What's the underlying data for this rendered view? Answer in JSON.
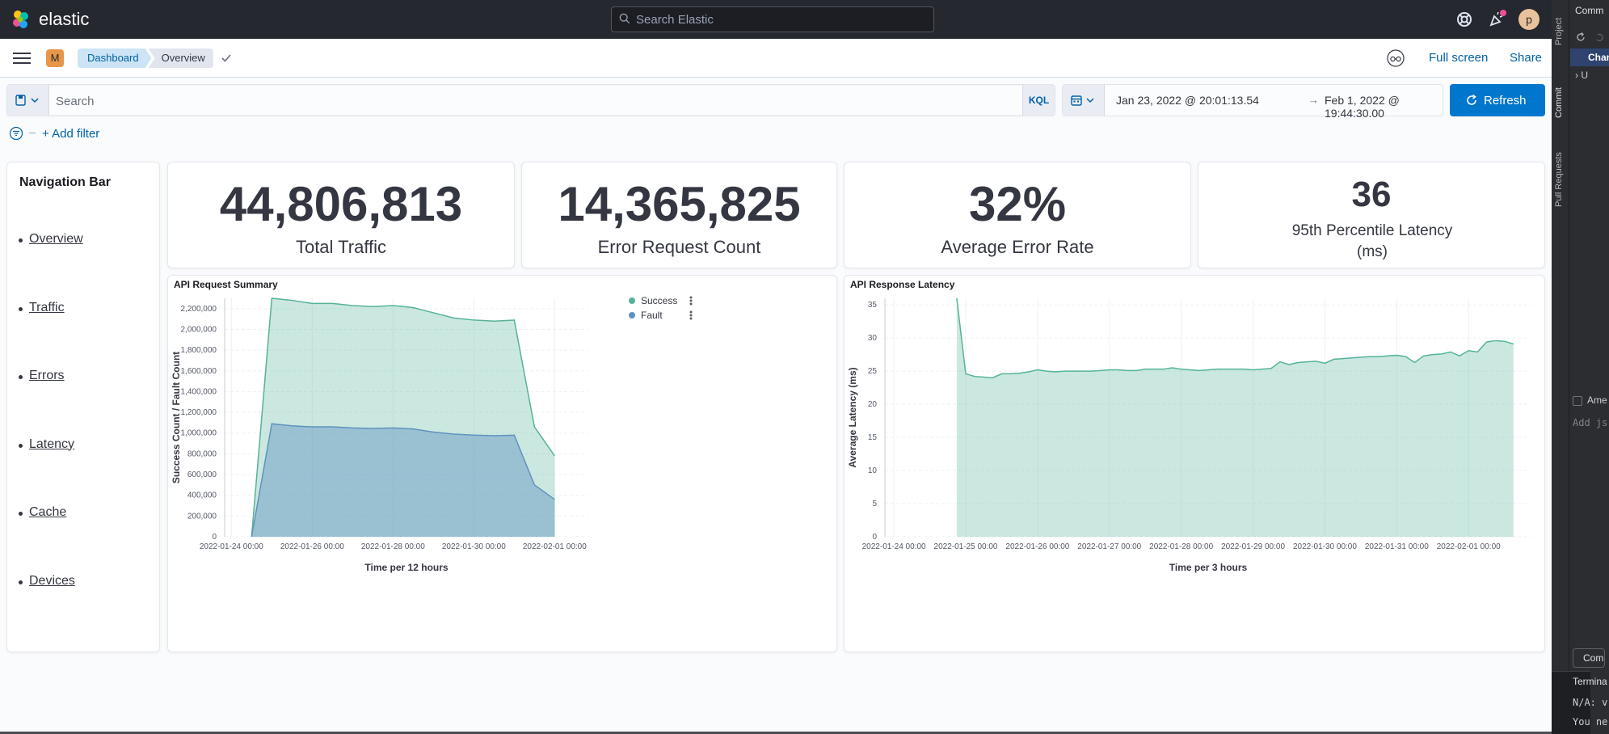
{
  "header": {
    "brand": "elastic",
    "search_placeholder": "Search Elastic",
    "user_initial": "p"
  },
  "breadcrumb_bar": {
    "space_initial": "M",
    "crumbs": [
      "Dashboard",
      "Overview"
    ],
    "fullscreen_label": "Full screen",
    "share_label": "Share"
  },
  "query_bar": {
    "placeholder": "Search",
    "language": "KQL"
  },
  "time_picker": {
    "start": "Jan 23, 2022 @ 20:01:13.54",
    "arrow": "→",
    "end": "Feb 1, 2022 @ 19:44:30.00",
    "refresh_label": "Refresh"
  },
  "filter_bar": {
    "add_filter_label": "+ Add filter"
  },
  "nav_panel": {
    "title": "Navigation Bar",
    "items": [
      "Overview",
      "Traffic",
      "Errors",
      "Latency",
      "Cache",
      "Devices"
    ]
  },
  "metrics": [
    {
      "value": "44,806,813",
      "label": "Total Traffic"
    },
    {
      "value": "14,365,825",
      "label": "Error Request Count"
    },
    {
      "value": "32%",
      "label": "Average Error Rate"
    },
    {
      "value": "36",
      "label": "95th Percentile Latency (ms)"
    }
  ],
  "colors": {
    "success": "#54b399",
    "fault": "#6092c0",
    "link": "#0061a6",
    "primary_button": "#0077cc",
    "header_bg": "#25282f"
  },
  "icons": [
    "elastic-logo-icon",
    "search-icon",
    "help-icon",
    "newsfeed-icon",
    "menu-icon",
    "check-icon",
    "glasses-icon",
    "saved-query-icon",
    "calendar-icon",
    "chevron-down-icon",
    "refresh-icon",
    "filter-icon",
    "legend-menu-icon"
  ],
  "chart_data": [
    {
      "type": "area",
      "title": "API Request Summary",
      "xlabel": "Time per 12 hours",
      "ylabel": "Success Count / Fault Count",
      "x_ticks": [
        "2022-01-24 00:00",
        "2022-01-26 00:00",
        "2022-01-28 00:00",
        "2022-01-30 00:00",
        "2022-02-01 00:00"
      ],
      "y_ticks": [
        "0",
        "200,000",
        "400,000",
        "600,000",
        "800,000",
        "1,000,000",
        "1,200,000",
        "1,400,000",
        "1,600,000",
        "1,800,000",
        "2,000,000",
        "2,200,000"
      ],
      "ylim": [
        0,
        2300000
      ],
      "xlim": [
        "2022-01-23 20:00",
        "2022-02-01 20:00"
      ],
      "x": [
        "2022-01-24 12:00",
        "2022-01-25 00:00",
        "2022-01-25 12:00",
        "2022-01-26 00:00",
        "2022-01-26 12:00",
        "2022-01-27 00:00",
        "2022-01-27 12:00",
        "2022-01-28 00:00",
        "2022-01-28 12:00",
        "2022-01-29 00:00",
        "2022-01-29 12:00",
        "2022-01-30 00:00",
        "2022-01-30 12:00",
        "2022-01-31 00:00",
        "2022-01-31 12:00",
        "2022-02-01 00:00"
      ],
      "series": [
        {
          "name": "Success",
          "values": [
            0,
            2300000,
            2280000,
            2250000,
            2250000,
            2230000,
            2220000,
            2230000,
            2210000,
            2160000,
            2110000,
            2090000,
            2080000,
            2090000,
            1060000,
            780000
          ]
        },
        {
          "name": "Fault",
          "values": [
            0,
            1090000,
            1070000,
            1060000,
            1060000,
            1050000,
            1045000,
            1050000,
            1040000,
            1010000,
            990000,
            980000,
            975000,
            980000,
            500000,
            360000
          ]
        }
      ],
      "legend_position": "top-right",
      "grid": true
    },
    {
      "type": "area",
      "title": "API Response Latency",
      "xlabel": "Time per 3 hours",
      "ylabel": "Average Latency (ms)",
      "x_ticks": [
        "2022-01-24 00:00",
        "2022-01-25 00:00",
        "2022-01-26 00:00",
        "2022-01-27 00:00",
        "2022-01-28 00:00",
        "2022-01-29 00:00",
        "2022-01-30 00:00",
        "2022-01-31 00:00",
        "2022-02-01 00:00"
      ],
      "y_ticks": [
        "0",
        "5",
        "10",
        "15",
        "20",
        "25",
        "30",
        "35"
      ],
      "ylim": [
        0,
        36
      ],
      "xlim": [
        "2022-01-23 21:00",
        "2022-02-01 21:00"
      ],
      "x_start": "2022-01-24 21:00",
      "interval_hours": 3,
      "series": [
        {
          "name": "Latency",
          "values": [
            36,
            24.6,
            24.2,
            24.1,
            24.0,
            24.6,
            24.6,
            24.7,
            24.9,
            25.2,
            25.0,
            24.9,
            25.0,
            25.0,
            25.0,
            25.0,
            25.1,
            25.2,
            25.2,
            25.1,
            25.1,
            25.3,
            25.3,
            25.3,
            25.5,
            25.3,
            25.2,
            25.1,
            25.2,
            25.3,
            25.3,
            25.3,
            25.3,
            25.2,
            25.3,
            25.4,
            26.4,
            26.0,
            26.3,
            26.4,
            26.5,
            26.2,
            26.8,
            26.9,
            27.0,
            27.1,
            27.2,
            27.2,
            27.3,
            27.4,
            27.2,
            26.3,
            27.3,
            27.5,
            27.6,
            27.9,
            27.3,
            28.1,
            27.9,
            29.4,
            29.6,
            29.5,
            29.1
          ]
        }
      ],
      "grid": true
    }
  ],
  "ide_panel": {
    "tabs": [
      "Project",
      "Commit",
      "Pull Requests"
    ],
    "title": "Comm",
    "changes": "Chan",
    "tree_row": "U",
    "amend": "Ame",
    "message_placeholder": "Add js",
    "commit_button": "Comm",
    "terminal_title": "Termina",
    "terminal_line1": "N/A: v",
    "terminal_line2": "You ne"
  }
}
